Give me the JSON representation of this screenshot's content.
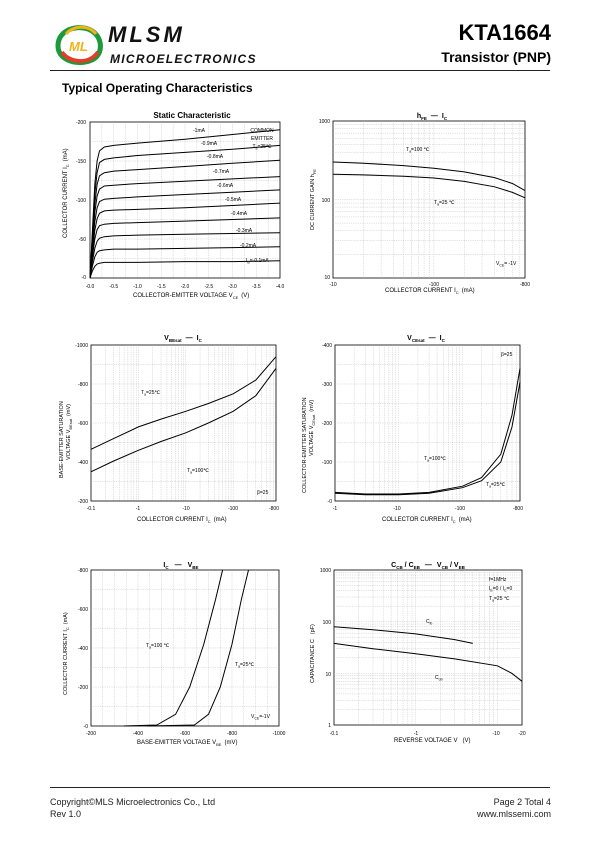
{
  "header": {
    "brand": "MLSM",
    "brand_logo_letters": "ML",
    "brand_sub": "MICROELECTRONICS",
    "part_number": "KTA1664",
    "part_type": "Transistor  (PNP)"
  },
  "section_title": "Typical Operating Characteristics",
  "charts": {
    "c1": {
      "title": "Static Characteristic",
      "ylabel": "COLLECTOR CURRENT    I",
      "ylabel_sub": "C",
      "yunit": "(mA)",
      "xlabel": "COLLECTOR-EMITTER VOLTAGE    V",
      "xlabel_sub": "CE",
      "xunit": "(V)",
      "yticks": [
        "-200",
        "-150",
        "-100",
        "-50",
        "-0"
      ],
      "xticks": [
        "-0.0",
        "-0.5",
        "-1.0",
        "-1.5",
        "-2.0",
        "-2.5",
        "-3.0",
        "-3.5",
        "-4.0"
      ],
      "note": [
        "COMMON",
        "EMITTER",
        "T",
        "a",
        "=25℃"
      ],
      "curve_labels": [
        "-1mA",
        "-0.9mA",
        "-0.8mA",
        "-0.7mA",
        "-0.6mA",
        "-0.5mA",
        "-0.4mA",
        "-0.3mA",
        "-0.2mA",
        "I",
        "B",
        "=-0.1mA"
      ]
    },
    "c2": {
      "title": "h",
      "title_sub": "FE",
      "title_dash": "—",
      "title_b": "I",
      "title_b_sub": "C",
      "ylabel": "DC CURRENT GAIN    h",
      "ylabel_sub": "FE",
      "xlabel": "COLLECTOR CURRENT    I",
      "xlabel_sub": "C",
      "xunit": "(mA)",
      "yticks": [
        "1000",
        "100",
        "10"
      ],
      "xticks": [
        "-10",
        "-100",
        "-800"
      ],
      "labels": [
        "T",
        "a",
        "=100 ℃",
        "T",
        "a",
        "=25 ℃",
        "V",
        "CE",
        "= -1V"
      ]
    },
    "c3": {
      "title": "V",
      "title_sub": "BEsat",
      "title_dash": "—",
      "title_b": "I",
      "title_b_sub": "C",
      "ylabel": "BASE-EMITTER SATURATION",
      "ylabel2": "VOLTAGE   V",
      "ylabel2_sub": "BEsat",
      "yunit": "(mV)",
      "xlabel": "COLLECTOR CURRENT    I",
      "xlabel_sub": "C",
      "xunit": "(mA)",
      "yticks": [
        "-1000",
        "-800",
        "-600",
        "-400",
        "-200"
      ],
      "xticks": [
        "-0.1",
        "-1",
        "-10",
        "-100",
        "-800"
      ],
      "labels": [
        "T",
        "a",
        "=25℃",
        "T",
        "a",
        "=100℃",
        "β=25"
      ]
    },
    "c4": {
      "title": "V",
      "title_sub": "CEsat",
      "title_dash": "—",
      "title_b": "I",
      "title_b_sub": "C",
      "ylabel": "COLLECTOR-EMITTER SATURATION",
      "ylabel2": "VOLTAGE   V",
      "ylabel2_sub": "CEsat",
      "yunit": "(mV)",
      "xlabel": "COLLECTOR CURRENT    I",
      "xlabel_sub": "C",
      "xunit": "(mA)",
      "yticks": [
        "-400",
        "-300",
        "-200",
        "-100",
        "-0"
      ],
      "xticks": [
        "-1",
        "-10",
        "-100",
        "-800"
      ],
      "labels": [
        "β=25",
        "T",
        "a",
        "=100℃",
        "T",
        "a",
        "=25℃"
      ]
    },
    "c5": {
      "title": "I",
      "title_sub": "C",
      "title_dash": "—",
      "title_b": "V",
      "title_b_sub": "BE",
      "ylabel": "COLLECTOR CURRENT    I",
      "ylabel_sub": "C",
      "yunit": "(mA)",
      "xlabel": "BASE-EMITTER VOLTAGE    V",
      "xlabel_sub": "BE",
      "xunit": "(mV)",
      "yticks": [
        "-800",
        "-600",
        "-400",
        "-200",
        "-0"
      ],
      "xticks": [
        "-200",
        "-400",
        "-600",
        "-800",
        "-1000"
      ],
      "labels": [
        "T",
        "a",
        "=100 ℃",
        "T",
        "a",
        "=25℃",
        "V",
        "CE",
        "=-1V"
      ]
    },
    "c6": {
      "title_a": "C",
      "title_a_sub": "CB",
      "title_slash": " / ",
      "title_b": "C",
      "title_b_sub": "EB",
      "title_dash": "—",
      "title_c": "V",
      "title_c_sub": "CB",
      "title_d": "V",
      "title_d_sub": "EB",
      "ylabel": "CAPACITANCE    C",
      "yunit": "(pF)",
      "xlabel": "REVERSE  VOLTAGE   V",
      "xunit": "(V)",
      "yticks": [
        "1000",
        "100",
        "10",
        "1"
      ],
      "xticks": [
        "-0.1",
        "-1",
        "-10",
        "-20"
      ],
      "labels": [
        "f=1MHz",
        "I",
        "E",
        "=0 / I",
        "C",
        "=0",
        "T",
        "a",
        "=25 ℃",
        "C",
        "ib",
        "C",
        "ob"
      ]
    }
  },
  "chart_data": [
    {
      "type": "line",
      "title": "Static Characteristic",
      "xlabel": "COLLECTOR-EMITTER VOLTAGE VCE (V)",
      "ylabel": "COLLECTOR CURRENT IC (mA)",
      "xlim": [
        0,
        -4.0
      ],
      "ylim": [
        0,
        -200
      ],
      "x": [
        0,
        -0.05,
        -0.1,
        -0.15,
        -0.2,
        -0.3,
        -0.5,
        -1.0,
        -2.0,
        -3.0,
        -4.0
      ],
      "series": [
        {
          "name": "-1mA",
          "values": [
            0,
            -60,
            -120,
            -150,
            -163,
            -168,
            -170,
            -173,
            -178,
            -184,
            -190
          ]
        },
        {
          "name": "-0.9mA",
          "values": [
            0,
            -55,
            -108,
            -135,
            -148,
            -152,
            -154,
            -157,
            -161,
            -165,
            -170
          ]
        },
        {
          "name": "-0.8mA",
          "values": [
            0,
            -50,
            -95,
            -120,
            -131,
            -135,
            -137,
            -139,
            -143,
            -147,
            -151
          ]
        },
        {
          "name": "-0.7mA",
          "values": [
            0,
            -44,
            -84,
            -105,
            -114,
            -118,
            -119,
            -121,
            -124,
            -127,
            -130
          ]
        },
        {
          "name": "-0.6mA",
          "values": [
            0,
            -38,
            -72,
            -90,
            -98,
            -101,
            -102,
            -104,
            -107,
            -110,
            -113
          ]
        },
        {
          "name": "-0.5mA",
          "values": [
            0,
            -32,
            -61,
            -76,
            -83,
            -86,
            -87,
            -88,
            -90,
            -93,
            -96
          ]
        },
        {
          "name": "-0.4mA",
          "values": [
            0,
            -27,
            -50,
            -62,
            -67,
            -69,
            -70,
            -71,
            -73,
            -75,
            -77
          ]
        },
        {
          "name": "-0.3mA",
          "values": [
            0,
            -21,
            -38,
            -47,
            -51,
            -53,
            -54,
            -55,
            -56,
            -57,
            -58
          ]
        },
        {
          "name": "-0.2mA",
          "values": [
            0,
            -15,
            -27,
            -33,
            -35,
            -36,
            -37,
            -37,
            -38,
            -39,
            -40
          ]
        },
        {
          "name": "IB=-0.1mA",
          "values": [
            0,
            -9,
            -15,
            -18,
            -19,
            -20,
            -20,
            -20,
            -21,
            -21,
            -22
          ]
        }
      ]
    },
    {
      "type": "line",
      "title": "hFE — IC",
      "xlabel": "COLLECTOR CURRENT IC (mA)",
      "ylabel": "DC CURRENT GAIN hFE",
      "xscale": "log",
      "yscale": "log",
      "xlim": [
        -10,
        -800
      ],
      "ylim": [
        10,
        1000
      ],
      "x": [
        -10,
        -20,
        -50,
        -100,
        -200,
        -400,
        -600,
        -800
      ],
      "series": [
        {
          "name": "Ta=100 ℃",
          "values": [
            300,
            290,
            270,
            250,
            225,
            190,
            160,
            130
          ]
        },
        {
          "name": "Ta=25 ℃",
          "values": [
            210,
            206,
            198,
            188,
            170,
            145,
            123,
            105
          ]
        }
      ]
    },
    {
      "type": "line",
      "title": "VBEsat — IC",
      "xlabel": "COLLECTOR CURRENT IC (mA)",
      "ylabel": "BASE-EMITTER SATURATION VOLTAGE VBEsat (mV)",
      "xscale": "log",
      "xlim": [
        -0.1,
        -800
      ],
      "ylim": [
        -200,
        -1000
      ],
      "x": [
        -0.1,
        -0.3,
        -1,
        -3,
        -10,
        -30,
        -100,
        -300,
        -800
      ],
      "series": [
        {
          "name": "Ta=25℃",
          "values": [
            -465,
            -520,
            -580,
            -620,
            -660,
            -700,
            -750,
            -820,
            -940
          ]
        },
        {
          "name": "Ta=100℃",
          "values": [
            -350,
            -405,
            -460,
            -505,
            -550,
            -600,
            -660,
            -740,
            -880
          ]
        }
      ]
    },
    {
      "type": "line",
      "title": "VCEsat — IC",
      "xlabel": "COLLECTOR CURRENT IC (mA)",
      "ylabel": "COLLECTOR-EMITTER SATURATION VOLTAGE VCEsat (mV)",
      "xscale": "log",
      "xlim": [
        -1,
        -800
      ],
      "ylim": [
        0,
        -400
      ],
      "x": [
        -1,
        -3,
        -10,
        -30,
        -100,
        -200,
        -400,
        -600,
        -800
      ],
      "series": [
        {
          "name": "Ta=100℃",
          "values": [
            -22,
            -18,
            -18,
            -22,
            -38,
            -60,
            -120,
            -220,
            -340
          ]
        },
        {
          "name": "Ta=25℃",
          "values": [
            -20,
            -16,
            -16,
            -20,
            -34,
            -52,
            -100,
            -190,
            -305
          ]
        }
      ]
    },
    {
      "type": "line",
      "title": "IC — VBE",
      "xlabel": "BASE-EMITTER VOLTAGE VBE (mV)",
      "ylabel": "COLLECTOR CURRENT IC (mA)",
      "xlim": [
        -200,
        -1000
      ],
      "ylim": [
        0,
        -800
      ],
      "series": [
        {
          "name": "Ta=100 ℃",
          "x": [
            -340,
            -480,
            -560,
            -620,
            -680,
            -730,
            -760
          ],
          "values": [
            0,
            -5,
            -60,
            -200,
            -420,
            -650,
            -800
          ]
        },
        {
          "name": "Ta=25℃",
          "x": [
            -440,
            -640,
            -700,
            -750,
            -800,
            -840,
            -870
          ],
          "values": [
            0,
            -5,
            -60,
            -200,
            -420,
            -650,
            -800
          ]
        }
      ]
    },
    {
      "type": "line",
      "title": "CCB / CEB — VCB / VEB",
      "xlabel": "REVERSE VOLTAGE V (V)",
      "ylabel": "CAPACITANCE C (pF)",
      "xscale": "log",
      "yscale": "log",
      "xlim": [
        -0.1,
        -20
      ],
      "ylim": [
        1,
        1000
      ],
      "series": [
        {
          "name": "Cib",
          "x": [
            -0.1,
            -0.3,
            -1,
            -3,
            -5
          ],
          "values": [
            80,
            70,
            58,
            45,
            38
          ]
        },
        {
          "name": "Cob",
          "x": [
            -0.1,
            -0.3,
            -1,
            -3,
            -10,
            -15,
            -20
          ],
          "values": [
            38,
            30,
            24,
            19,
            14,
            10,
            7
          ]
        }
      ]
    }
  ],
  "footer": {
    "copyright": "Copyright©MLS Microelectronics Co., Ltd",
    "rev": "Rev 1.0",
    "page": "Page 2 Total 4",
    "website": "www.mlssemi.com"
  }
}
